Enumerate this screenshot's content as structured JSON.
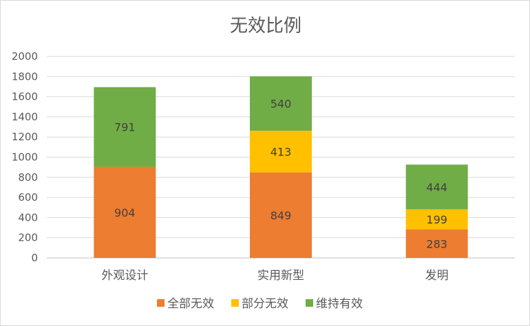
{
  "chart_data": {
    "type": "bar",
    "stacked": true,
    "title": "无效比例",
    "categories": [
      "外观设计",
      "实用新型",
      "发明"
    ],
    "series": [
      {
        "name": "全部无效",
        "color": "#ED7D31",
        "values": [
          904,
          849,
          283
        ]
      },
      {
        "name": "部分无效",
        "color": "#FFC000",
        "values": [
          0,
          413,
          199
        ]
      },
      {
        "name": "维持有效",
        "color": "#70AD47",
        "values": [
          791,
          540,
          444
        ]
      }
    ],
    "ylim": [
      0,
      2000
    ],
    "yticks": [
      0,
      200,
      400,
      600,
      800,
      1000,
      1200,
      1400,
      1600,
      1800,
      2000
    ],
    "grid": true,
    "legend_position": "bottom"
  }
}
